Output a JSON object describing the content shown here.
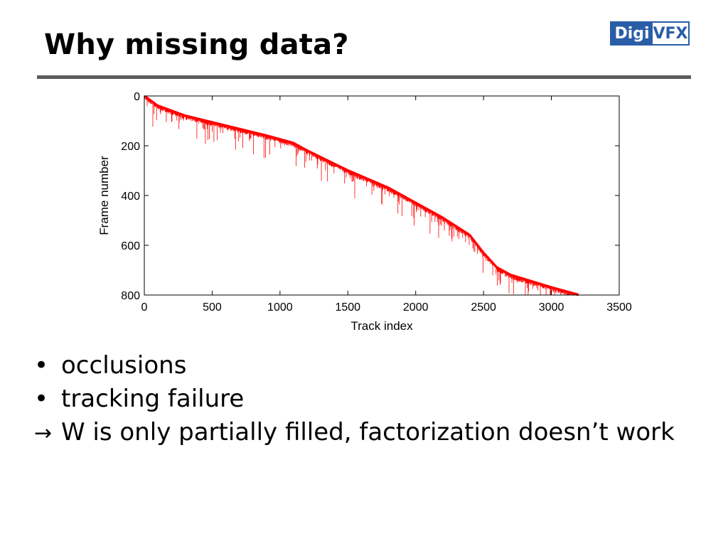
{
  "slide": {
    "title": "Why missing data?",
    "logo": {
      "part1": "Digi",
      "part2": "VFX",
      "color": "#2a5da8"
    }
  },
  "bullets": [
    {
      "mark": "•",
      "text": "occlusions"
    },
    {
      "mark": "•",
      "text": "tracking failure"
    },
    {
      "mark": "→",
      "text": "W is only partially filled, factorization doesn’t work"
    }
  ],
  "chart_data": {
    "type": "line",
    "xlabel": "Track index",
    "ylabel": "Frame number",
    "xlim": [
      0,
      3500
    ],
    "ylim": [
      0,
      800
    ],
    "y_reversed": true,
    "xticks": [
      0,
      500,
      1000,
      1500,
      2000,
      2500,
      3000,
      3500
    ],
    "yticks": [
      0,
      200,
      400,
      600,
      800
    ],
    "grid": false,
    "color": "#ff0000",
    "series": [
      {
        "values_x": [
          0,
          100,
          300,
          600,
          900,
          1100,
          1200,
          1500,
          1800,
          2000,
          2200,
          2400,
          2500,
          2600,
          2700,
          3000,
          3200
        ],
        "values_y": [
          0,
          40,
          80,
          120,
          160,
          190,
          220,
          300,
          370,
          430,
          490,
          560,
          630,
          690,
          720,
          770,
          800
        ]
      }
    ]
  }
}
